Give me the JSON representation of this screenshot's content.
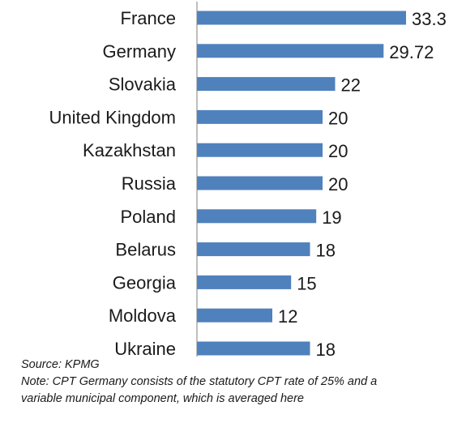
{
  "chart_data": {
    "type": "bar",
    "orientation": "horizontal",
    "categories": [
      "France",
      "Germany",
      "Slovakia",
      "United Kingdom",
      "Kazakhstan",
      "Russia",
      "Poland",
      "Belarus",
      "Georgia",
      "Moldova",
      "Ukraine"
    ],
    "values": [
      33.3,
      29.72,
      22,
      20,
      20,
      20,
      19,
      18,
      15,
      12,
      18
    ],
    "value_labels": [
      "33.3",
      "29.72",
      "22",
      "20",
      "20",
      "20",
      "19",
      "18",
      "15",
      "12",
      "18"
    ],
    "title": "",
    "xlabel": "",
    "ylabel": "",
    "xlim": [
      0,
      33.3
    ],
    "grid": false,
    "bar_color": "#4f81bd",
    "axis_color": "#7f7f7f"
  },
  "notes": {
    "source": "Source: KPMG",
    "note_line1": "Note: CPT Germany consists of the statutory CPT rate of 25% and a",
    "note_line2": "variable municipal  component, which is averaged here"
  }
}
